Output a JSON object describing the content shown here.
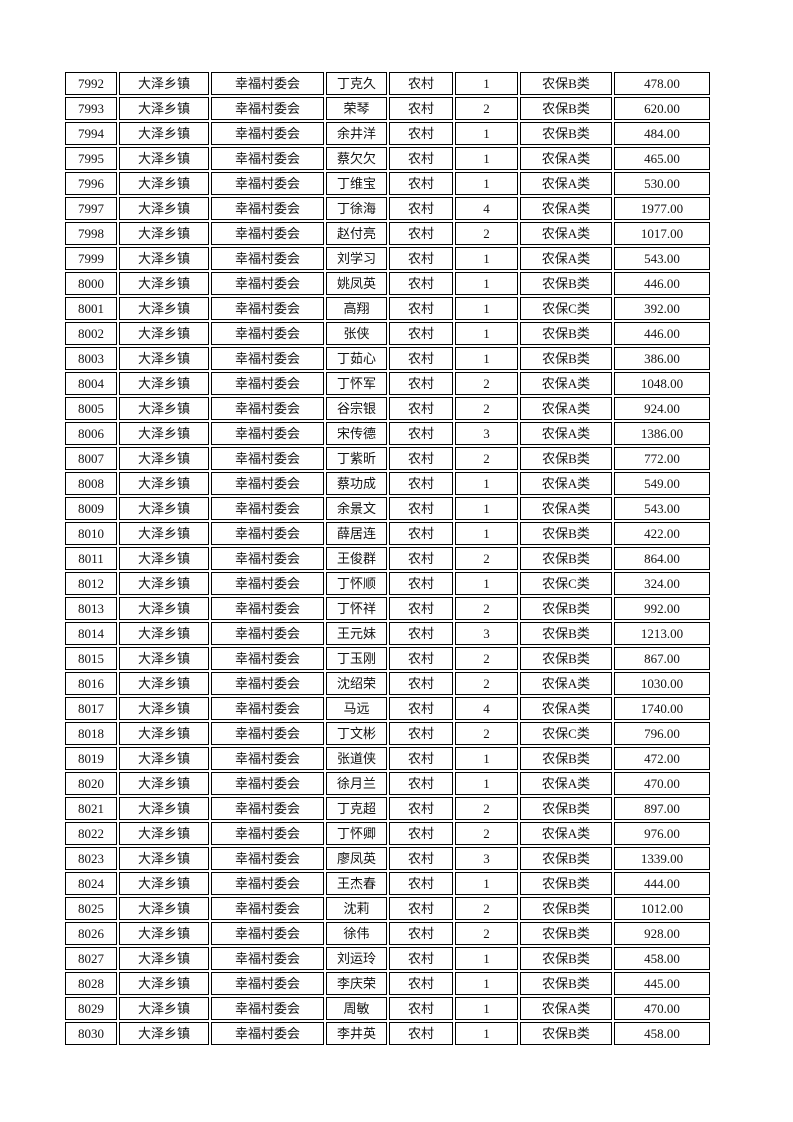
{
  "page": {
    "background": "#ffffff"
  },
  "table": {
    "border_color": "#000000",
    "text_color": "#111111",
    "rows": [
      [
        "7992",
        "大泽乡镇",
        "幸福村委会",
        "丁克久",
        "农村",
        "1",
        "农保B类",
        "478.00"
      ],
      [
        "7993",
        "大泽乡镇",
        "幸福村委会",
        "荣琴",
        "农村",
        "2",
        "农保B类",
        "620.00"
      ],
      [
        "7994",
        "大泽乡镇",
        "幸福村委会",
        "余井洋",
        "农村",
        "1",
        "农保B类",
        "484.00"
      ],
      [
        "7995",
        "大泽乡镇",
        "幸福村委会",
        "蔡欠欠",
        "农村",
        "1",
        "农保A类",
        "465.00"
      ],
      [
        "7996",
        "大泽乡镇",
        "幸福村委会",
        "丁维宝",
        "农村",
        "1",
        "农保A类",
        "530.00"
      ],
      [
        "7997",
        "大泽乡镇",
        "幸福村委会",
        "丁徐海",
        "农村",
        "4",
        "农保A类",
        "1977.00"
      ],
      [
        "7998",
        "大泽乡镇",
        "幸福村委会",
        "赵付亮",
        "农村",
        "2",
        "农保A类",
        "1017.00"
      ],
      [
        "7999",
        "大泽乡镇",
        "幸福村委会",
        "刘学习",
        "农村",
        "1",
        "农保A类",
        "543.00"
      ],
      [
        "8000",
        "大泽乡镇",
        "幸福村委会",
        "姚凤英",
        "农村",
        "1",
        "农保B类",
        "446.00"
      ],
      [
        "8001",
        "大泽乡镇",
        "幸福村委会",
        "高翔",
        "农村",
        "1",
        "农保C类",
        "392.00"
      ],
      [
        "8002",
        "大泽乡镇",
        "幸福村委会",
        "张侠",
        "农村",
        "1",
        "农保B类",
        "446.00"
      ],
      [
        "8003",
        "大泽乡镇",
        "幸福村委会",
        "丁茹心",
        "农村",
        "1",
        "农保B类",
        "386.00"
      ],
      [
        "8004",
        "大泽乡镇",
        "幸福村委会",
        "丁怀军",
        "农村",
        "2",
        "农保A类",
        "1048.00"
      ],
      [
        "8005",
        "大泽乡镇",
        "幸福村委会",
        "谷宗银",
        "农村",
        "2",
        "农保A类",
        "924.00"
      ],
      [
        "8006",
        "大泽乡镇",
        "幸福村委会",
        "宋传德",
        "农村",
        "3",
        "农保A类",
        "1386.00"
      ],
      [
        "8007",
        "大泽乡镇",
        "幸福村委会",
        "丁紫昕",
        "农村",
        "2",
        "农保B类",
        "772.00"
      ],
      [
        "8008",
        "大泽乡镇",
        "幸福村委会",
        "蔡功成",
        "农村",
        "1",
        "农保A类",
        "549.00"
      ],
      [
        "8009",
        "大泽乡镇",
        "幸福村委会",
        "余景文",
        "农村",
        "1",
        "农保A类",
        "543.00"
      ],
      [
        "8010",
        "大泽乡镇",
        "幸福村委会",
        "薛居连",
        "农村",
        "1",
        "农保B类",
        "422.00"
      ],
      [
        "8011",
        "大泽乡镇",
        "幸福村委会",
        "王俊群",
        "农村",
        "2",
        "农保B类",
        "864.00"
      ],
      [
        "8012",
        "大泽乡镇",
        "幸福村委会",
        "丁怀顺",
        "农村",
        "1",
        "农保C类",
        "324.00"
      ],
      [
        "8013",
        "大泽乡镇",
        "幸福村委会",
        "丁怀祥",
        "农村",
        "2",
        "农保B类",
        "992.00"
      ],
      [
        "8014",
        "大泽乡镇",
        "幸福村委会",
        "王元妹",
        "农村",
        "3",
        "农保B类",
        "1213.00"
      ],
      [
        "8015",
        "大泽乡镇",
        "幸福村委会",
        "丁玉刚",
        "农村",
        "2",
        "农保B类",
        "867.00"
      ],
      [
        "8016",
        "大泽乡镇",
        "幸福村委会",
        "沈绍荣",
        "农村",
        "2",
        "农保A类",
        "1030.00"
      ],
      [
        "8017",
        "大泽乡镇",
        "幸福村委会",
        "马远",
        "农村",
        "4",
        "农保A类",
        "1740.00"
      ],
      [
        "8018",
        "大泽乡镇",
        "幸福村委会",
        "丁文彬",
        "农村",
        "2",
        "农保C类",
        "796.00"
      ],
      [
        "8019",
        "大泽乡镇",
        "幸福村委会",
        "张道侠",
        "农村",
        "1",
        "农保B类",
        "472.00"
      ],
      [
        "8020",
        "大泽乡镇",
        "幸福村委会",
        "徐月兰",
        "农村",
        "1",
        "农保A类",
        "470.00"
      ],
      [
        "8021",
        "大泽乡镇",
        "幸福村委会",
        "丁克超",
        "农村",
        "2",
        "农保B类",
        "897.00"
      ],
      [
        "8022",
        "大泽乡镇",
        "幸福村委会",
        "丁怀卿",
        "农村",
        "2",
        "农保A类",
        "976.00"
      ],
      [
        "8023",
        "大泽乡镇",
        "幸福村委会",
        "廖凤英",
        "农村",
        "3",
        "农保B类",
        "1339.00"
      ],
      [
        "8024",
        "大泽乡镇",
        "幸福村委会",
        "王杰春",
        "农村",
        "1",
        "农保B类",
        "444.00"
      ],
      [
        "8025",
        "大泽乡镇",
        "幸福村委会",
        "沈莉",
        "农村",
        "2",
        "农保B类",
        "1012.00"
      ],
      [
        "8026",
        "大泽乡镇",
        "幸福村委会",
        "徐伟",
        "农村",
        "2",
        "农保B类",
        "928.00"
      ],
      [
        "8027",
        "大泽乡镇",
        "幸福村委会",
        "刘运玲",
        "农村",
        "1",
        "农保B类",
        "458.00"
      ],
      [
        "8028",
        "大泽乡镇",
        "幸福村委会",
        "李庆荣",
        "农村",
        "1",
        "农保B类",
        "445.00"
      ],
      [
        "8029",
        "大泽乡镇",
        "幸福村委会",
        "周敏",
        "农村",
        "1",
        "农保A类",
        "470.00"
      ],
      [
        "8030",
        "大泽乡镇",
        "幸福村委会",
        "李井英",
        "农村",
        "1",
        "农保B类",
        "458.00"
      ]
    ]
  }
}
